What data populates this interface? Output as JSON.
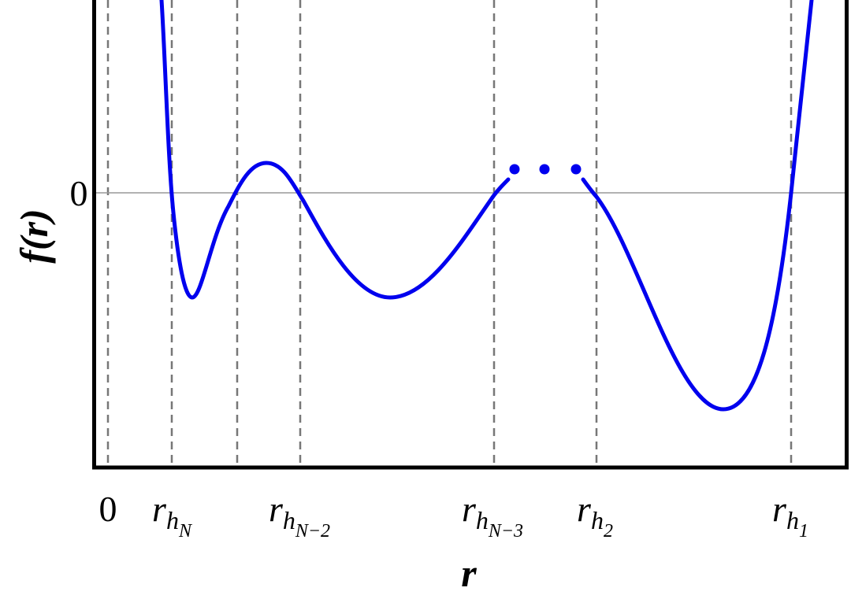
{
  "y_axis": {
    "label": "f(r)",
    "ticks": [
      "0"
    ]
  },
  "x_axis": {
    "label": "r",
    "ticks": [
      "0",
      {
        "base": "r",
        "sub": "h",
        "subsub": "N"
      },
      {
        "base": "r",
        "sub": "h",
        "subsub": "N−2"
      },
      {
        "base": "r",
        "sub": "h",
        "subsub": "N−3"
      },
      {
        "base": "r",
        "sub": "h",
        "subsub": "2"
      },
      {
        "base": "r",
        "sub": "h",
        "subsub": "1"
      }
    ]
  }
}
